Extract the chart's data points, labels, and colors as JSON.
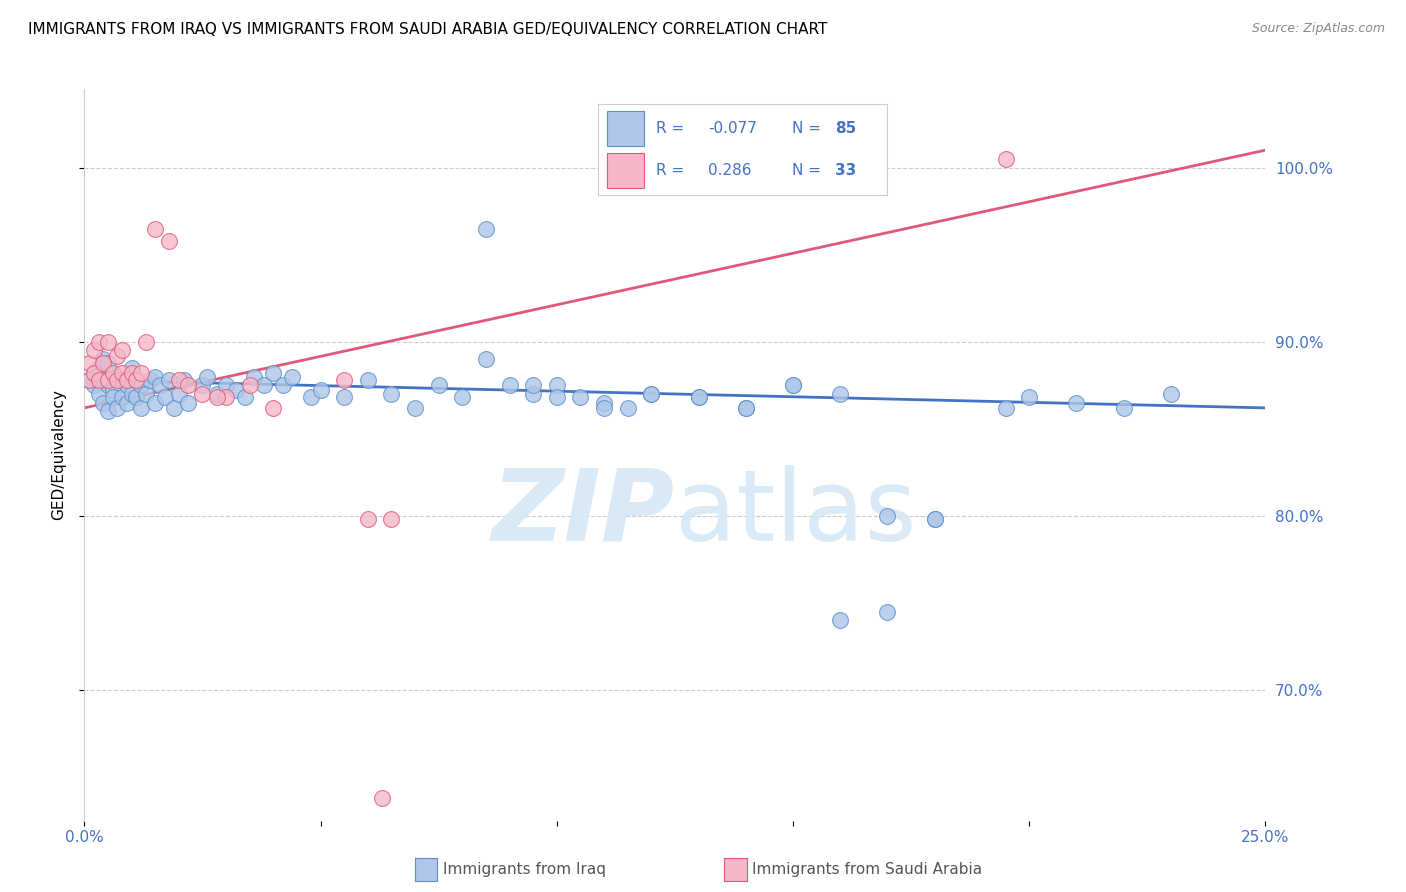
{
  "title": "IMMIGRANTS FROM IRAQ VS IMMIGRANTS FROM SAUDI ARABIA GED/EQUIVALENCY CORRELATION CHART",
  "source": "Source: ZipAtlas.com",
  "ylabel": "GED/Equivalency",
  "ytick_vals": [
    0.7,
    0.8,
    0.9,
    1.0
  ],
  "ytick_labels": [
    "70.0%",
    "80.0%",
    "90.0%",
    "100.0%"
  ],
  "xtick_vals": [
    0.0,
    0.05,
    0.1,
    0.15,
    0.2,
    0.25
  ],
  "xtick_labels_show": [
    "0.0%",
    "",
    "",
    "",
    "",
    "25.0%"
  ],
  "xmin": 0.0,
  "xmax": 0.25,
  "ymin": 0.625,
  "ymax": 1.045,
  "legend_iraq_R": "-0.077",
  "legend_iraq_N": "85",
  "legend_saudi_R": "0.286",
  "legend_saudi_N": "33",
  "color_iraq_fill": "#aec6e8",
  "color_iraq_edge": "#5b8fcc",
  "color_saudi_fill": "#f5b8c8",
  "color_saudi_edge": "#e05878",
  "color_iraq_line": "#4472c4",
  "color_saudi_line": "#e05878",
  "watermark_color": "#d5e8f5",
  "iraq_line_x0": 0.0,
  "iraq_line_y0": 0.878,
  "iraq_line_x1": 0.25,
  "iraq_line_y1": 0.862,
  "saudi_line_x0": 0.0,
  "saudi_line_y0": 0.862,
  "saudi_line_x1": 0.25,
  "saudi_line_y1": 1.01,
  "iraq_pts_x": [
    0.001,
    0.002,
    0.002,
    0.003,
    0.003,
    0.004,
    0.004,
    0.004,
    0.005,
    0.005,
    0.005,
    0.006,
    0.006,
    0.007,
    0.007,
    0.008,
    0.008,
    0.009,
    0.009,
    0.01,
    0.01,
    0.011,
    0.011,
    0.012,
    0.012,
    0.013,
    0.014,
    0.015,
    0.015,
    0.016,
    0.017,
    0.018,
    0.019,
    0.02,
    0.021,
    0.022,
    0.025,
    0.026,
    0.028,
    0.03,
    0.032,
    0.034,
    0.036,
    0.038,
    0.04,
    0.042,
    0.044,
    0.048,
    0.05,
    0.055,
    0.06,
    0.065,
    0.07,
    0.075,
    0.08,
    0.085,
    0.09,
    0.095,
    0.1,
    0.105,
    0.11,
    0.115,
    0.12,
    0.13,
    0.14,
    0.15,
    0.16,
    0.17,
    0.18,
    0.195,
    0.2,
    0.21,
    0.22,
    0.23,
    0.085,
    0.095,
    0.1,
    0.11,
    0.12,
    0.13,
    0.14,
    0.15,
    0.16,
    0.17,
    0.18
  ],
  "iraq_pts_y": [
    0.878,
    0.875,
    0.882,
    0.87,
    0.885,
    0.865,
    0.878,
    0.89,
    0.86,
    0.875,
    0.888,
    0.872,
    0.868,
    0.88,
    0.862,
    0.878,
    0.868,
    0.875,
    0.865,
    0.87,
    0.885,
    0.868,
    0.878,
    0.875,
    0.862,
    0.87,
    0.878,
    0.865,
    0.88,
    0.875,
    0.868,
    0.878,
    0.862,
    0.87,
    0.878,
    0.865,
    0.875,
    0.88,
    0.87,
    0.875,
    0.872,
    0.868,
    0.88,
    0.875,
    0.882,
    0.875,
    0.88,
    0.868,
    0.872,
    0.868,
    0.878,
    0.87,
    0.862,
    0.875,
    0.868,
    0.965,
    0.875,
    0.87,
    0.875,
    0.868,
    0.865,
    0.862,
    0.87,
    0.868,
    0.862,
    0.875,
    0.87,
    0.745,
    0.798,
    0.862,
    0.868,
    0.865,
    0.862,
    0.87,
    0.89,
    0.875,
    0.868,
    0.862,
    0.87,
    0.868,
    0.862,
    0.875,
    0.74,
    0.8,
    0.798
  ],
  "saudi_pts_x": [
    0.001,
    0.001,
    0.002,
    0.002,
    0.003,
    0.003,
    0.004,
    0.005,
    0.005,
    0.006,
    0.007,
    0.007,
    0.008,
    0.008,
    0.009,
    0.01,
    0.011,
    0.012,
    0.013,
    0.015,
    0.018,
    0.02,
    0.022,
    0.025,
    0.03,
    0.035,
    0.04,
    0.055,
    0.06,
    0.065,
    0.195,
    0.063,
    0.028
  ],
  "saudi_pts_y": [
    0.878,
    0.888,
    0.882,
    0.895,
    0.878,
    0.9,
    0.888,
    0.878,
    0.9,
    0.882,
    0.878,
    0.892,
    0.882,
    0.895,
    0.878,
    0.882,
    0.878,
    0.882,
    0.9,
    0.965,
    0.958,
    0.878,
    0.875,
    0.87,
    0.868,
    0.875,
    0.862,
    0.878,
    0.798,
    0.798,
    1.005,
    0.638,
    0.868
  ]
}
